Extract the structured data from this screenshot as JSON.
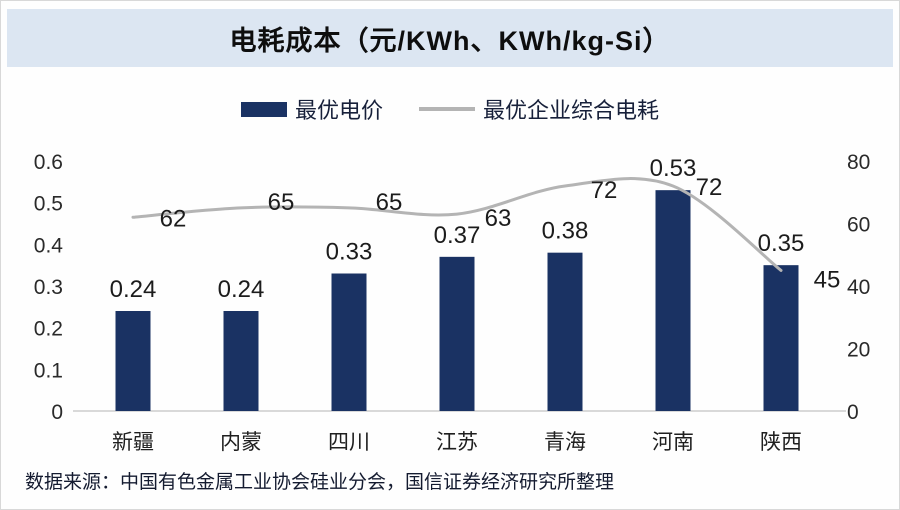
{
  "title": "电耗成本（元/KWh、KWh/kg-Si）",
  "legend": [
    {
      "label": "最优电价",
      "type": "bar",
      "color": "#1a3263"
    },
    {
      "label": "最优企业综合电耗",
      "type": "line",
      "color": "#b4b4b4"
    }
  ],
  "footer": "数据来源：中国有色金属工业协会硅业分会，国信证券经济研究所整理",
  "colors": {
    "bar": "#1a3263",
    "line": "#b4b4b4",
    "title_band": "#dce6f2",
    "axis_line": "#d9d9d9",
    "label_text": "#1c1c1c"
  },
  "chart_data": {
    "type": "bar",
    "title": "电耗成本（元/KWh、KWh/kg-Si）",
    "categories": [
      "新疆",
      "内蒙",
      "四川",
      "江苏",
      "青海",
      "河南",
      "陕西"
    ],
    "series": [
      {
        "name": "最优电价",
        "type": "bar",
        "axis": "left",
        "color": "#1a3263",
        "values": [
          0.24,
          0.24,
          0.33,
          0.37,
          0.38,
          0.53,
          0.35
        ]
      },
      {
        "name": "最优企业综合电耗",
        "type": "line",
        "axis": "right",
        "color": "#b4b4b4",
        "values": [
          62,
          65,
          65,
          63,
          72,
          72,
          45
        ]
      }
    ],
    "left_axis": {
      "ticks": [
        "0",
        "0.1",
        "0.2",
        "0.3",
        "0.4",
        "0.5",
        "0.6"
      ],
      "range": [
        0,
        0.6
      ]
    },
    "right_axis": {
      "ticks": [
        "0",
        "20",
        "40",
        "60",
        "80"
      ],
      "range": [
        0,
        80
      ]
    },
    "grid": false,
    "legend_position": "top",
    "source_note": "数据来源：中国有色金属工业协会硅业分会，国信证券经济研究所整理"
  }
}
